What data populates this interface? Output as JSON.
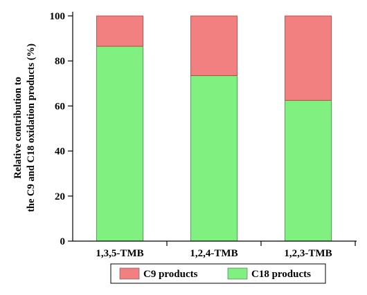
{
  "chart_data": {
    "type": "bar",
    "stacked": true,
    "categories": [
      "1,3,5-TMB",
      "1,2,4-TMB",
      "1,2,3-TMB"
    ],
    "series": [
      {
        "name": "C18 products",
        "values": [
          86.5,
          73.5,
          62.5
        ],
        "color": "#80f080"
      },
      {
        "name": "C9 products",
        "values": [
          13.5,
          26.5,
          37.5
        ],
        "color": "#f28080"
      }
    ],
    "ylabel": [
      "Relative contribution to",
      "the C9 and C18 oxidation products (%)"
    ],
    "ylim": [
      0,
      100
    ],
    "yticks": [
      0,
      20,
      40,
      60,
      80,
      100
    ],
    "grid": false,
    "legend_position": "bottom",
    "legend_order": [
      "C9 products",
      "C18 products"
    ]
  }
}
